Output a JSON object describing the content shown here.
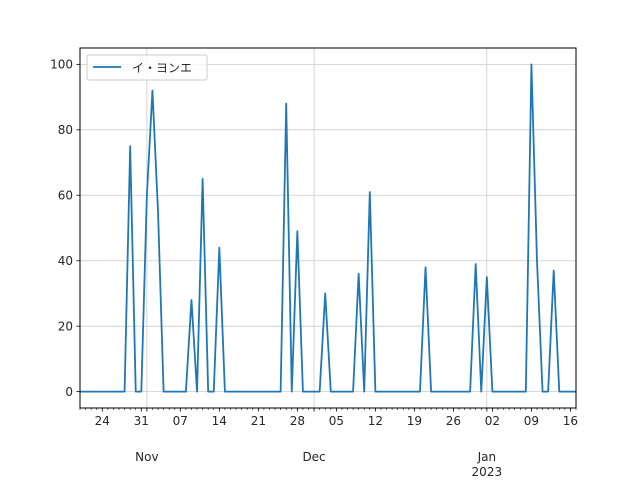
{
  "chart_data": {
    "type": "line",
    "title": "",
    "xlabel": "",
    "ylabel": "",
    "grid": true,
    "legend_placement": "top-left",
    "colors": {
      "series": "#1f77b4",
      "grid": "#cccccc",
      "axis": "#000000",
      "background": "#ffffff"
    },
    "xlim": [
      "2022-10-20",
      "2023-01-17"
    ],
    "ylim": [
      -5,
      105
    ],
    "y_ticks": [
      0,
      20,
      40,
      60,
      80,
      100
    ],
    "x_ticks": [
      {
        "date": "2022-10-24",
        "label": "24"
      },
      {
        "date": "2022-10-31",
        "label": "31"
      },
      {
        "date": "2022-11-07",
        "label": "07"
      },
      {
        "date": "2022-11-14",
        "label": "14"
      },
      {
        "date": "2022-11-21",
        "label": "21"
      },
      {
        "date": "2022-11-28",
        "label": "28"
      },
      {
        "date": "2022-12-05",
        "label": "05"
      },
      {
        "date": "2022-12-12",
        "label": "12"
      },
      {
        "date": "2022-12-19",
        "label": "19"
      },
      {
        "date": "2022-12-26",
        "label": "26"
      },
      {
        "date": "2023-01-02",
        "label": "02"
      },
      {
        "date": "2023-01-09",
        "label": "09"
      },
      {
        "date": "2023-01-16",
        "label": "16"
      }
    ],
    "month_labels": [
      {
        "date": "2022-11-01",
        "label": "Nov"
      },
      {
        "date": "2022-12-01",
        "label": "Dec"
      },
      {
        "date": "2023-01-01",
        "label": "Jan\n2023"
      }
    ],
    "series": [
      {
        "name": "イ・ヨンエ",
        "x": [
          "2022-10-20",
          "2022-10-21",
          "2022-10-22",
          "2022-10-23",
          "2022-10-24",
          "2022-10-25",
          "2022-10-26",
          "2022-10-27",
          "2022-10-28",
          "2022-10-29",
          "2022-10-30",
          "2022-10-31",
          "2022-11-01",
          "2022-11-02",
          "2022-11-03",
          "2022-11-04",
          "2022-11-05",
          "2022-11-06",
          "2022-11-07",
          "2022-11-08",
          "2022-11-09",
          "2022-11-10",
          "2022-11-11",
          "2022-11-12",
          "2022-11-13",
          "2022-11-14",
          "2022-11-15",
          "2022-11-16",
          "2022-11-17",
          "2022-11-18",
          "2022-11-19",
          "2022-11-20",
          "2022-11-21",
          "2022-11-22",
          "2022-11-23",
          "2022-11-24",
          "2022-11-25",
          "2022-11-26",
          "2022-11-27",
          "2022-11-28",
          "2022-11-29",
          "2022-11-30",
          "2022-12-01",
          "2022-12-02",
          "2022-12-03",
          "2022-12-04",
          "2022-12-05",
          "2022-12-06",
          "2022-12-07",
          "2022-12-08",
          "2022-12-09",
          "2022-12-10",
          "2022-12-11",
          "2022-12-12",
          "2022-12-13",
          "2022-12-14",
          "2022-12-15",
          "2022-12-16",
          "2022-12-17",
          "2022-12-18",
          "2022-12-19",
          "2022-12-20",
          "2022-12-21",
          "2022-12-22",
          "2022-12-23",
          "2022-12-24",
          "2022-12-25",
          "2022-12-26",
          "2022-12-27",
          "2022-12-28",
          "2022-12-29",
          "2022-12-30",
          "2022-12-31",
          "2023-01-01",
          "2023-01-02",
          "2023-01-03",
          "2023-01-04",
          "2023-01-05",
          "2023-01-06",
          "2023-01-07",
          "2023-01-08",
          "2023-01-09",
          "2023-01-10",
          "2023-01-11",
          "2023-01-12",
          "2023-01-13",
          "2023-01-14",
          "2023-01-15",
          "2023-01-16",
          "2023-01-17"
        ],
        "y": [
          0,
          0,
          0,
          0,
          0,
          0,
          0,
          0,
          0,
          75,
          0,
          0,
          60,
          92,
          55,
          0,
          0,
          0,
          0,
          0,
          28,
          0,
          65,
          0,
          0,
          44,
          0,
          0,
          0,
          0,
          0,
          0,
          0,
          0,
          0,
          0,
          0,
          88,
          0,
          49,
          0,
          0,
          0,
          0,
          30,
          0,
          0,
          0,
          0,
          0,
          36,
          0,
          61,
          0,
          0,
          0,
          0,
          0,
          0,
          0,
          0,
          0,
          38,
          0,
          0,
          0,
          0,
          0,
          0,
          0,
          0,
          39,
          0,
          35,
          0,
          0,
          0,
          0,
          0,
          0,
          0,
          100,
          40,
          0,
          0,
          37,
          0,
          0,
          0,
          0
        ]
      }
    ]
  }
}
